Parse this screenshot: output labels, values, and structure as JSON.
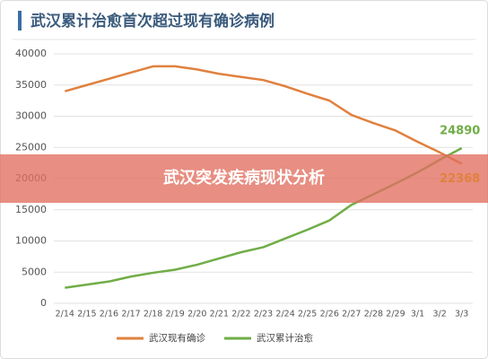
{
  "chart_data": {
    "type": "line",
    "title": "武汉累计治愈首次超过现有确诊病例",
    "categories": [
      "2/14",
      "2/15",
      "2/16",
      "2/17",
      "2/18",
      "2/19",
      "2/20",
      "2/21",
      "2/22",
      "2/23",
      "2/24",
      "2/25",
      "2/26",
      "2/27",
      "2/28",
      "2/29",
      "3/1",
      "3/2",
      "3/3"
    ],
    "series": [
      {
        "name": "武汉现有确诊",
        "color": "#e0813e",
        "values": [
          34000,
          35000,
          36000,
          37000,
          38000,
          38000,
          37500,
          36800,
          36300,
          35800,
          34800,
          33600,
          32500,
          30200,
          28900,
          27700,
          25900,
          24200,
          22368
        ]
      },
      {
        "name": "武汉累计治愈",
        "color": "#70ad47",
        "values": [
          2500,
          3000,
          3500,
          4300,
          4900,
          5400,
          6200,
          7200,
          8200,
          9000,
          10400,
          11800,
          13300,
          15800,
          17500,
          19200,
          21000,
          23000,
          24890
        ]
      }
    ],
    "ylim": [
      0,
      40000
    ],
    "yticks": [
      0,
      5000,
      10000,
      15000,
      20000,
      25000,
      30000,
      35000,
      40000
    ],
    "grid": true,
    "legend": "bottom"
  },
  "banner": {
    "text": "武汉突发疾病现状分析"
  }
}
